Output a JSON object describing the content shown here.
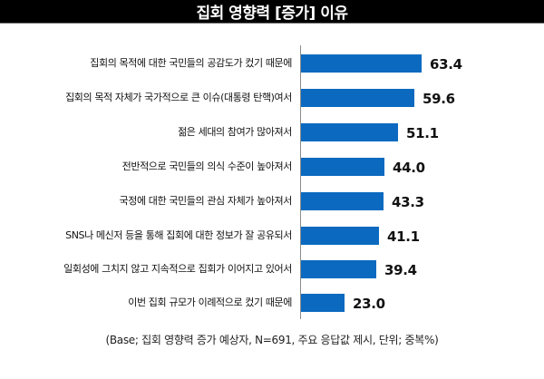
{
  "header": {
    "title": "집회 영향력 [증가] 이유"
  },
  "footnote": "(Base; 집회 영향력 증가 예상자, N=691, 주요 응답값 제시, 단위; 중복%)",
  "colors": {
    "bar": "#0b6ac0",
    "header_bg": "#000000",
    "header_text": "#ffffff"
  },
  "chart_data": {
    "type": "bar",
    "orientation": "horizontal",
    "title": "집회 영향력 [증가] 이유",
    "xlabel": "",
    "ylabel": "",
    "unit": "중복%",
    "categories": [
      "집회의 목적에 대한 국민들의 공감도가 컸기 때문에",
      "집회의 목적 자체가 국가적으로 큰 이슈(대통령 탄핵)여서",
      "젊은 세대의 참여가 많아져서",
      "전반적으로 국민들의 의식 수준이 높아져서",
      "국정에 대한 국민들의 관심 자체가 높아져서",
      "SNS나 메신저 등을 통해 집회에 대한 정보가 잘 공유되서",
      "일회성에 그치지 않고 지속적으로 집회가 이어지고 있어서",
      "이번 집회 규모가 이례적으로 컸기 때문에"
    ],
    "values": [
      63.4,
      59.6,
      51.1,
      44.0,
      43.3,
      41.1,
      39.4,
      23.0
    ],
    "value_labels": [
      "63.4",
      "59.6",
      "51.1",
      "44.0",
      "43.3",
      "41.1",
      "39.4",
      "23.0"
    ],
    "grid": false,
    "legend": null,
    "note": "(Base; 집회 영향력 증가 예상자, N=691, 주요 응답값 제시, 단위; 중복%)"
  }
}
